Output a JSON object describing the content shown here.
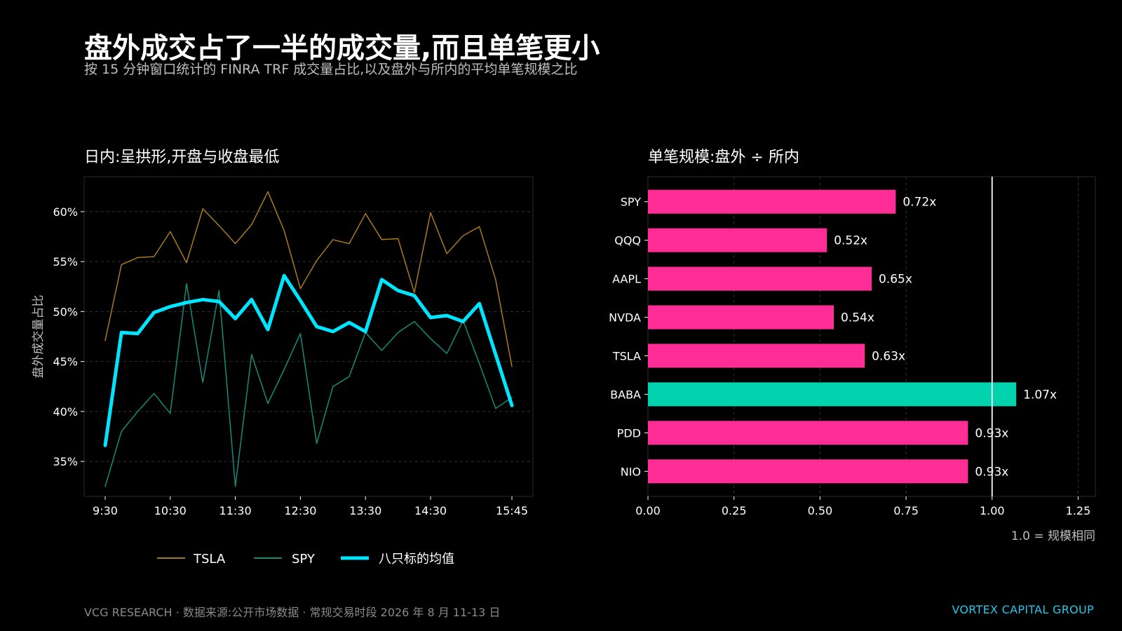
{
  "header": {
    "title": "盘外成交占了一半的成交量,而且单笔更小",
    "subtitle": "按 15 分钟窗口统计的 FINRA TRF 成交量占比,以及盘外与所内的平均单笔规模之比"
  },
  "footer": {
    "source": "VCG RESEARCH · 数据来源:公开市场数据 · 常规交易时段 2026 年 8 月 11-13 日",
    "brand": "VORTEX CAPITAL GROUP"
  },
  "colors": {
    "background": "#000000",
    "tsla": "#a9791f",
    "spy": "#138c7a",
    "mean": "#00e5ff",
    "bar_default": "#ff2d95",
    "bar_highlight": "#00d3ad",
    "reference_line": "#e6e6e6"
  },
  "chart_data": [
    {
      "type": "line",
      "title": "日内:呈拱形,开盘与收盘最低",
      "ylabel": "盘外成交量占比",
      "xlabel": "",
      "x": [
        "9:30",
        "9:45",
        "10:00",
        "10:15",
        "10:30",
        "10:45",
        "11:00",
        "11:15",
        "11:30",
        "11:45",
        "12:00",
        "12:15",
        "12:30",
        "12:45",
        "13:00",
        "13:15",
        "13:30",
        "13:45",
        "14:00",
        "14:15",
        "14:30",
        "14:45",
        "15:00",
        "15:15",
        "15:30",
        "15:45"
      ],
      "x_ticks": [
        "9:30",
        "10:30",
        "11:30",
        "12:30",
        "13:30",
        "14:30",
        "15:45"
      ],
      "y_ticks": [
        "35%",
        "40%",
        "45%",
        "50%",
        "55%",
        "60%"
      ],
      "ylim": [
        31.5,
        63.5
      ],
      "grid": "horizontal dashed",
      "legend_position": "bottom",
      "series": [
        {
          "name": "TSLA",
          "color": "#a9791f",
          "width": 1.5,
          "values": [
            47.1,
            54.7,
            55.4,
            55.5,
            58.0,
            54.9,
            60.3,
            58.6,
            56.8,
            58.7,
            62.0,
            58.1,
            52.3,
            55.1,
            57.2,
            56.8,
            59.8,
            57.2,
            57.3,
            51.9,
            59.9,
            55.8,
            57.6,
            58.5,
            53.2,
            44.5
          ]
        },
        {
          "name": "SPY",
          "color": "#138c7a",
          "width": 1.5,
          "values": [
            32.5,
            38.0,
            40.0,
            41.8,
            39.8,
            52.8,
            42.9,
            52.1,
            32.5,
            45.7,
            40.8,
            44.2,
            47.8,
            36.8,
            42.5,
            43.5,
            47.9,
            46.1,
            47.9,
            49.0,
            47.3,
            45.8,
            49.1,
            44.8,
            40.3,
            41.4
          ]
        },
        {
          "name": "八只标的均值",
          "color": "#00e5ff",
          "width": 5,
          "values": [
            36.6,
            47.9,
            47.8,
            49.9,
            50.5,
            50.9,
            51.2,
            51.0,
            49.3,
            51.2,
            48.2,
            53.6,
            51.1,
            48.5,
            48.0,
            48.9,
            48.0,
            53.2,
            52.1,
            51.6,
            49.4,
            49.6,
            49.0,
            50.8,
            45.7,
            40.6
          ]
        }
      ]
    },
    {
      "type": "bar",
      "orientation": "horizontal",
      "title": "单笔规模:盘外 ÷ 所内",
      "categories": [
        "SPY",
        "QQQ",
        "AAPL",
        "NVDA",
        "TSLA",
        "BABA",
        "PDD",
        "NIO"
      ],
      "values": [
        0.72,
        0.52,
        0.65,
        0.54,
        0.63,
        1.07,
        0.93,
        0.93
      ],
      "value_labels": [
        "0.72x",
        "0.52x",
        "0.65x",
        "0.54x",
        "0.63x",
        "1.07x",
        "0.93x",
        "0.93x"
      ],
      "highlight": "BABA",
      "xlim": [
        0,
        1.3
      ],
      "x_ticks": [
        "0.00",
        "0.25",
        "0.50",
        "0.75",
        "1.00",
        "1.25"
      ],
      "reference_value": 1.0,
      "reference_note": "1.0 = 规模相同",
      "grid": "vertical dashed"
    }
  ]
}
